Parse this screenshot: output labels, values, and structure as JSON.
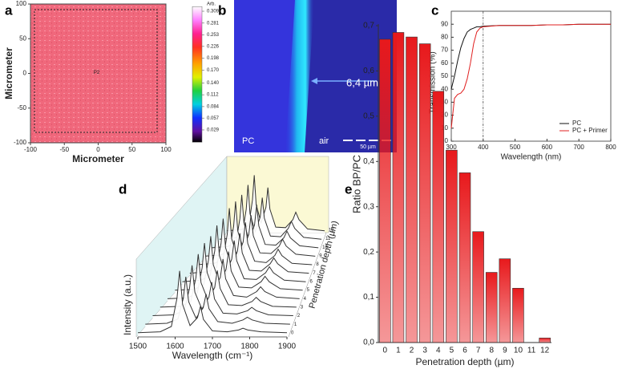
{
  "panel_labels": [
    "a",
    "b",
    "c",
    "d",
    "e"
  ],
  "micrograph": {
    "left_label": "PC",
    "right_label": "air",
    "thickness": "6,4 µm",
    "scale_bar": "50 µm"
  },
  "chart_data": [
    {
      "type": "map",
      "color": "#f0687c",
      "marker": "P2",
      "xlabel": "Micrometer",
      "ylabel": "Micrometer",
      "xlim": [
        -100,
        100
      ],
      "ylim": [
        -100,
        100
      ],
      "xticks": [
        -100,
        -50,
        0,
        50,
        100
      ],
      "yticks": [
        -100,
        -50,
        0,
        50,
        100
      ],
      "colorbar": {
        "label": "Arb.",
        "lim": [
          0,
          0.32
        ],
        "ticks": [
          0.309,
          0.281,
          0.253,
          0.226,
          0.198,
          {
            "value": 0.17,
            "label": "0.170"
          },
          {
            "value": 0.14,
            "label": "0.140"
          },
          0.112,
          0.084,
          0.057,
          0.029
        ]
      }
    },
    {
      "type": "line",
      "xlabel": "Wavelength (nm)",
      "ylabel": "Transmission (%)",
      "x": [
        300,
        310,
        320,
        330,
        340,
        350,
        360,
        370,
        380,
        390,
        400,
        450,
        500,
        550,
        600,
        650,
        700,
        750,
        800
      ],
      "series": [
        {
          "name": "PC",
          "color": "#111111",
          "values": [
            40,
            50,
            62,
            72,
            79,
            84,
            86,
            87,
            88,
            88,
            88.5,
            89,
            89,
            89,
            89.5,
            89.5,
            90,
            90,
            90
          ]
        },
        {
          "name": "PC + Primer",
          "color": "#e02020",
          "values": [
            10,
            33,
            36,
            37,
            40,
            48,
            60,
            75,
            84,
            87,
            88,
            89,
            89,
            89,
            89.5,
            89.5,
            90,
            90,
            90
          ]
        }
      ],
      "xlim": [
        300,
        800
      ],
      "ylim": [
        0,
        100
      ],
      "xticks": [
        300,
        400,
        500,
        600,
        700,
        800
      ],
      "yticks": [
        0,
        10,
        20,
        30,
        40,
        50,
        60,
        70,
        80,
        90
      ],
      "vline": 400,
      "legend": "lower right"
    },
    {
      "type": "waterfall",
      "color": "#333333",
      "xlabel": "Wavelength (cm⁻¹)",
      "ylabel": "Intensity (a.u.)",
      "zlabel": "Penetration depth (µm)",
      "x": [
        1500,
        1560,
        1590,
        1605,
        1612,
        1620,
        1640,
        1660,
        1668,
        1676,
        1700,
        1740,
        1770,
        1782,
        1795,
        1830,
        1900
      ],
      "xlim": [
        1500,
        1900
      ],
      "xticks": [
        1500,
        1600,
        1700,
        1800,
        1900
      ],
      "ylim": [
        0,
        1
      ],
      "zticks": [
        0,
        1,
        2,
        3,
        4,
        5,
        6,
        7,
        8,
        9,
        10,
        11,
        12
      ],
      "series": [
        {
          "values": [
            0.03,
            0.04,
            0.1,
            0.42,
            0.73,
            0.35,
            0.11,
            0.2,
            0.33,
            0.18,
            0.05,
            0.04,
            0.06,
            0.08,
            0.06,
            0.04,
            0.03
          ]
        },
        {
          "values": [
            0.03,
            0.04,
            0.09,
            0.33,
            0.58,
            0.29,
            0.1,
            0.22,
            0.38,
            0.21,
            0.06,
            0.04,
            0.08,
            0.11,
            0.08,
            0.04,
            0.03
          ]
        },
        {
          "values": [
            0.03,
            0.04,
            0.09,
            0.36,
            0.63,
            0.31,
            0.11,
            0.25,
            0.43,
            0.23,
            0.06,
            0.05,
            0.09,
            0.13,
            0.09,
            0.04,
            0.03
          ]
        },
        {
          "values": [
            0.03,
            0.04,
            0.1,
            0.39,
            0.68,
            0.33,
            0.12,
            0.27,
            0.48,
            0.26,
            0.06,
            0.05,
            0.1,
            0.15,
            0.1,
            0.04,
            0.03
          ]
        },
        {
          "values": [
            0.03,
            0.04,
            0.1,
            0.42,
            0.73,
            0.36,
            0.13,
            0.3,
            0.53,
            0.28,
            0.07,
            0.05,
            0.12,
            0.18,
            0.12,
            0.05,
            0.03
          ]
        },
        {
          "values": [
            0.03,
            0.04,
            0.1,
            0.42,
            0.73,
            0.36,
            0.13,
            0.3,
            0.53,
            0.28,
            0.07,
            0.06,
            0.14,
            0.21,
            0.14,
            0.05,
            0.03
          ]
        },
        {
          "values": [
            0.03,
            0.05,
            0.11,
            0.44,
            0.78,
            0.38,
            0.13,
            0.33,
            0.58,
            0.31,
            0.07,
            0.06,
            0.15,
            0.23,
            0.15,
            0.05,
            0.03
          ]
        },
        {
          "values": [
            0.03,
            0.05,
            0.11,
            0.44,
            0.78,
            0.38,
            0.13,
            0.33,
            0.58,
            0.31,
            0.07,
            0.06,
            0.16,
            0.24,
            0.16,
            0.05,
            0.03
          ]
        },
        {
          "values": [
            0.03,
            0.05,
            0.11,
            0.47,
            0.83,
            0.4,
            0.14,
            0.35,
            0.63,
            0.33,
            0.08,
            0.06,
            0.16,
            0.25,
            0.16,
            0.05,
            0.03
          ]
        },
        {
          "values": [
            0.03,
            0.05,
            0.11,
            0.47,
            0.83,
            0.4,
            0.14,
            0.35,
            0.63,
            0.33,
            0.08,
            0.07,
            0.18,
            0.28,
            0.18,
            0.06,
            0.03
          ]
        },
        {
          "values": [
            0.03,
            0.05,
            0.11,
            0.47,
            0.83,
            0.41,
            0.14,
            0.38,
            0.68,
            0.36,
            0.08,
            0.07,
            0.18,
            0.28,
            0.18,
            0.06,
            0.03
          ]
        },
        {
          "values": [
            0.03,
            0.05,
            0.12,
            0.5,
            0.88,
            0.43,
            0.15,
            0.38,
            0.68,
            0.36,
            0.08,
            0.07,
            0.2,
            0.31,
            0.2,
            0.06,
            0.03
          ]
        },
        {
          "values": [
            0.03,
            0.05,
            0.12,
            0.53,
            0.93,
            0.45,
            0.16,
            0.41,
            0.73,
            0.38,
            0.09,
            0.08,
            0.21,
            0.33,
            0.21,
            0.06,
            0.03
          ]
        }
      ]
    },
    {
      "type": "bar",
      "color": "#e8191c",
      "xlabel": "Penetration depth (µm)",
      "ylabel": "Ratio BP/PC",
      "categories": [
        "0",
        "1",
        "2",
        "3",
        "4",
        "5",
        "6",
        "7",
        "8",
        "9",
        "10",
        "11",
        "12"
      ],
      "values": [
        0.67,
        0.685,
        0.675,
        0.66,
        0.555,
        0.425,
        0.375,
        0.245,
        0.155,
        0.185,
        0.12,
        null,
        0.01
      ],
      "ylim": [
        0,
        0.7
      ],
      "yticks": [
        {
          "value": 0,
          "label": "0,0"
        },
        {
          "value": 0.1,
          "label": "0,1"
        },
        {
          "value": 0.2,
          "label": "0,2"
        },
        {
          "value": 0.3,
          "label": "0,3"
        },
        {
          "value": 0.4,
          "label": "0,4"
        },
        {
          "value": 0.5,
          "label": "0,5"
        },
        {
          "value": 0.6,
          "label": "0,6"
        },
        {
          "value": 0.7,
          "label": "0,7"
        }
      ]
    }
  ]
}
